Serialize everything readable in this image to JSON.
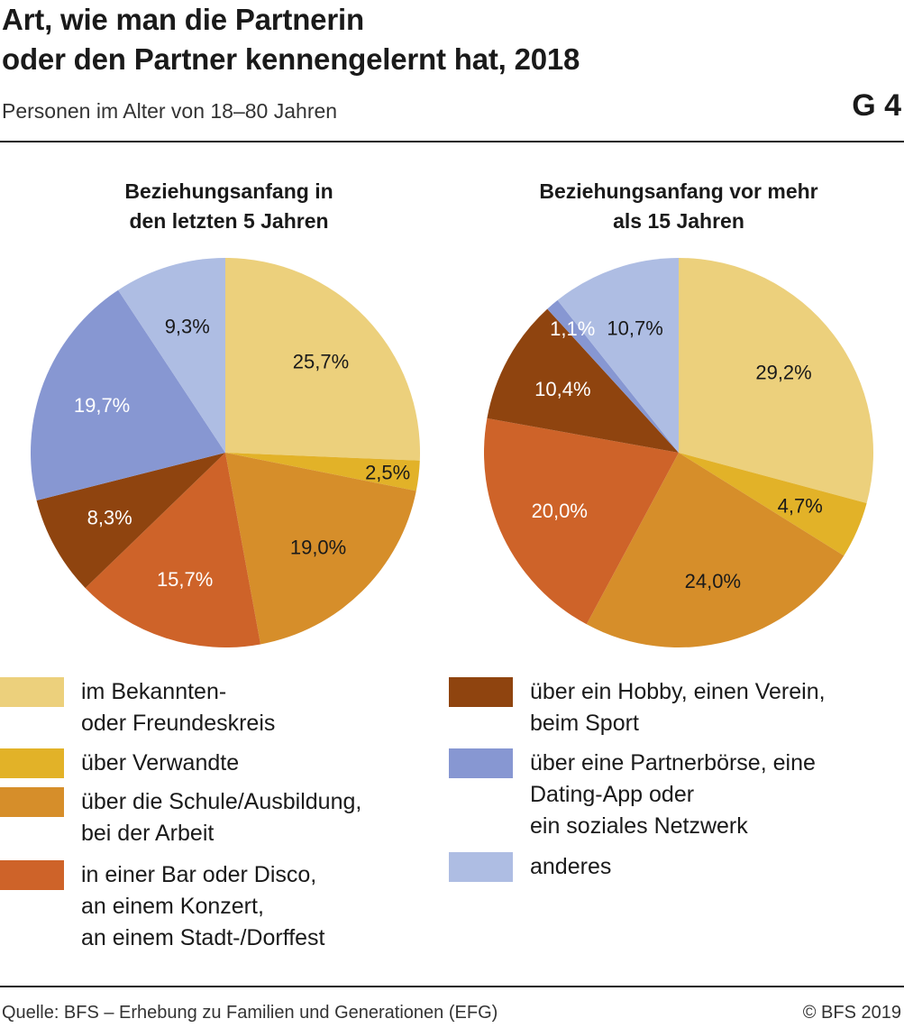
{
  "header": {
    "title_line1": "Art, wie man die Partnerin",
    "title_line2": "oder den Partner kennengelernt hat, 2018",
    "subtitle": "Personen im Alter von 18–80 Jahren",
    "badge": "G 4"
  },
  "footer": {
    "source": "Quelle: BFS – Erhebung zu Familien und Generationen (EFG)",
    "copyright": "© BFS 2019"
  },
  "legend": [
    {
      "label": "im Bekannten-\noder Freundeskreis",
      "color": "#ecd07c"
    },
    {
      "label": "über Verwandte",
      "color": "#e2b228"
    },
    {
      "label": "über die Schule/Ausbildung,\nbei der Arbeit",
      "color": "#d68e2a"
    },
    {
      "label": "in einer Bar oder Disco,\nan einem Konzert,\nan einem Stadt-/Dorffest",
      "color": "#ce6329"
    },
    {
      "label": "über ein Hobby, einen Verein,\nbeim Sport",
      "color": "#8f440f"
    },
    {
      "label": "über eine Partnerbörse, eine\nDating-App oder\nein soziales Netzwerk",
      "color": "#8797d2"
    },
    {
      "label": "anderes",
      "color": "#aebde3"
    }
  ],
  "chart_data": [
    {
      "type": "pie",
      "title_line1": "Beziehungsanfang in",
      "title_line2": "den letzten 5 Jahren",
      "values": [
        25.7,
        2.5,
        19.0,
        15.7,
        8.3,
        19.7,
        9.3
      ],
      "labels": [
        "25,7%",
        "2,5%",
        "19,0%",
        "15,7%",
        "8,3%",
        "19,7%",
        "9,3%"
      ],
      "label_colors": [
        "#1a1a1a",
        "#1a1a1a",
        "#1a1a1a",
        "#ffffff",
        "#ffffff",
        "#ffffff",
        "#1a1a1a"
      ]
    },
    {
      "type": "pie",
      "title_line1": "Beziehungsanfang vor mehr",
      "title_line2": "als 15 Jahren",
      "values": [
        29.2,
        4.7,
        24.0,
        20.0,
        10.4,
        1.1,
        10.7
      ],
      "labels": [
        "29,2%",
        "4,7%",
        "24,0%",
        "20,0%",
        "10,4%",
        "1,1%",
        "10,7%"
      ],
      "label_colors": [
        "#1a1a1a",
        "#1a1a1a",
        "#1a1a1a",
        "#ffffff",
        "#ffffff",
        "#ffffff",
        "#1a1a1a"
      ]
    }
  ]
}
